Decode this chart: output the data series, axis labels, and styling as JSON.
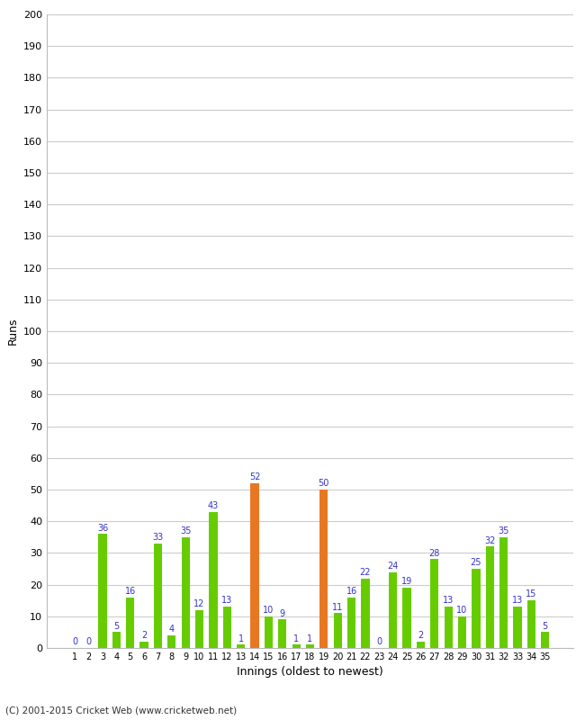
{
  "xlabel": "Innings (oldest to newest)",
  "ylabel": "Runs",
  "ylim": [
    0,
    200
  ],
  "yticks": [
    0,
    10,
    20,
    30,
    40,
    50,
    60,
    70,
    80,
    90,
    100,
    110,
    120,
    130,
    140,
    150,
    160,
    170,
    180,
    190,
    200
  ],
  "innings": [
    1,
    2,
    3,
    4,
    5,
    6,
    7,
    8,
    9,
    10,
    11,
    12,
    13,
    14,
    15,
    16,
    17,
    18,
    19,
    20,
    21,
    22,
    23,
    24,
    25,
    26,
    27,
    28,
    29,
    30,
    31,
    32,
    33,
    34,
    35
  ],
  "values": [
    0,
    0,
    36,
    5,
    16,
    2,
    33,
    4,
    35,
    12,
    43,
    13,
    1,
    52,
    10,
    9,
    1,
    1,
    50,
    11,
    16,
    22,
    0,
    24,
    19,
    2,
    28,
    13,
    10,
    25,
    32,
    35,
    13,
    15,
    5
  ],
  "colors": [
    "#66cc00",
    "#66cc00",
    "#66cc00",
    "#66cc00",
    "#66cc00",
    "#66cc00",
    "#66cc00",
    "#66cc00",
    "#66cc00",
    "#66cc00",
    "#66cc00",
    "#66cc00",
    "#66cc00",
    "#e87722",
    "#66cc00",
    "#66cc00",
    "#66cc00",
    "#66cc00",
    "#e87722",
    "#66cc00",
    "#66cc00",
    "#66cc00",
    "#66cc00",
    "#66cc00",
    "#66cc00",
    "#66cc00",
    "#66cc00",
    "#66cc00",
    "#66cc00",
    "#66cc00",
    "#66cc00",
    "#66cc00",
    "#66cc00",
    "#66cc00",
    "#66cc00"
  ],
  "label_color": "#3333cc",
  "bg_color": "#ffffff",
  "grid_color": "#cccccc",
  "footer": "(C) 2001-2015 Cricket Web (www.cricketweb.net)",
  "bar_width": 0.6
}
